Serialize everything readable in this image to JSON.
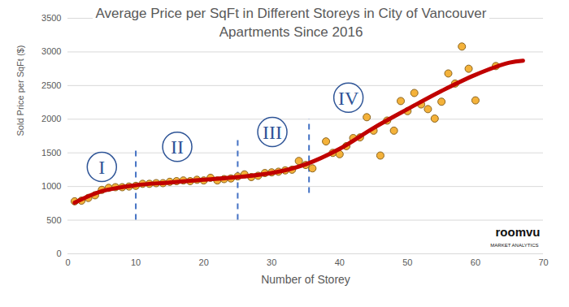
{
  "chart_data": {
    "type": "scatter",
    "title": "Average Price per SqFt in Different Storeys in City of Vancouver",
    "subtitle": "Apartments Since 2016",
    "x_label": "Number of Storey",
    "y_label": "Sold Price per SqFt ($)",
    "xlim": [
      0,
      70
    ],
    "xticks": [
      0,
      10,
      20,
      30,
      40,
      50,
      60,
      70
    ],
    "ylim": [
      0,
      3500
    ],
    "yticks": [
      0,
      500,
      1000,
      1500,
      2000,
      2500,
      3000,
      3500
    ],
    "grid": "y",
    "series": [
      {
        "type": "scatter",
        "color": "#f4b23a",
        "marker": "circle",
        "x": [
          1,
          2,
          3,
          4,
          5,
          6,
          7,
          8,
          9,
          10,
          11,
          12,
          13,
          14,
          15,
          16,
          17,
          18,
          19,
          20,
          21,
          22,
          23,
          24,
          25,
          26,
          27,
          28,
          29,
          30,
          31,
          32,
          33,
          34,
          35,
          36,
          38,
          39,
          40,
          41,
          42,
          43,
          44,
          45,
          46,
          47,
          48,
          49,
          50,
          51,
          52,
          53,
          54,
          55,
          56,
          57,
          58,
          59,
          60,
          63
        ],
        "values": [
          780,
          790,
          830,
          870,
          950,
          980,
          990,
          990,
          1000,
          1010,
          1040,
          1040,
          1050,
          1050,
          1070,
          1080,
          1090,
          1080,
          1100,
          1090,
          1130,
          1090,
          1110,
          1120,
          1150,
          1180,
          1140,
          1160,
          1200,
          1210,
          1220,
          1240,
          1250,
          1380,
          1320,
          1270,
          1670,
          1500,
          1480,
          1600,
          1720,
          1730,
          2030,
          1830,
          1460,
          1980,
          1830,
          2270,
          2120,
          2390,
          2220,
          2150,
          2010,
          2260,
          2680,
          2530,
          3080,
          2750,
          2280,
          2790
        ]
      },
      {
        "type": "line",
        "color": "#c00000",
        "line_style": "solid",
        "x": [
          1,
          5,
          10,
          15,
          20,
          25,
          30,
          35,
          40,
          45,
          50,
          55,
          60,
          65,
          67
        ],
        "values": [
          760,
          930,
          1020,
          1060,
          1100,
          1140,
          1200,
          1330,
          1560,
          1870,
          2150,
          2420,
          2660,
          2840,
          2870
        ]
      }
    ],
    "dividers": [
      {
        "x": 10,
        "y1": 500,
        "y2": 1600
      },
      {
        "x": 25,
        "y1": 500,
        "y2": 1700
      },
      {
        "x": 35.5,
        "y1": 900,
        "y2": 2000
      }
    ],
    "annotations": [
      {
        "text": "I",
        "x": 5,
        "y": 1290
      },
      {
        "text": "II",
        "x": 16.1,
        "y": 1590
      },
      {
        "text": "III",
        "x": 30.1,
        "y": 1810
      },
      {
        "text": "IV",
        "x": 41.3,
        "y": 2320
      }
    ],
    "logo": {
      "text": "roomvu",
      "subtext": "MARKET ANALYTICS"
    }
  }
}
